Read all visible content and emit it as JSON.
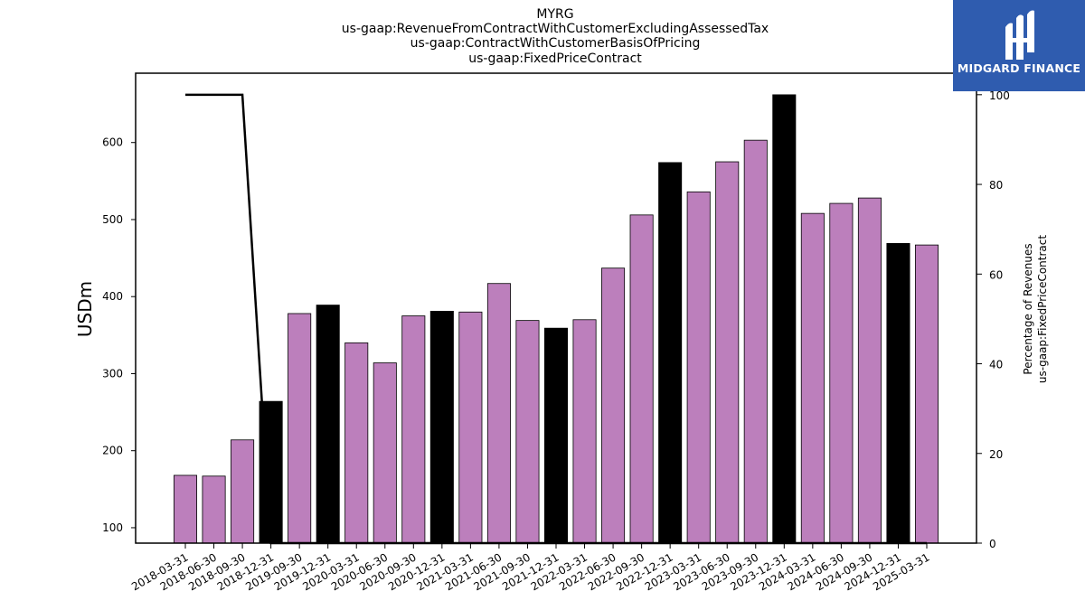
{
  "chart_data": {
    "type": "bar",
    "title_lines": [
      "MYRG",
      "us-gaap:RevenueFromContractWithCustomerExcludingAssessedTax",
      "us-gaap:ContractWithCustomerBasisOfPricing",
      "us-gaap:FixedPriceContract"
    ],
    "ylabel": "USDm",
    "y2label_lines": [
      "Percentage of Revenues",
      "us-gaap:FixedPriceContract"
    ],
    "ylim": [
      80,
      690
    ],
    "y2lim": [
      0,
      104.8
    ],
    "yticks": [
      100,
      200,
      300,
      400,
      500,
      600
    ],
    "y2ticks": [
      0,
      20,
      40,
      60,
      80,
      100
    ],
    "categories": [
      "2018-03-31",
      "2018-06-30",
      "2018-09-30",
      "2018-12-31",
      "2019-09-30",
      "2019-12-31",
      "2020-03-31",
      "2020-06-30",
      "2020-09-30",
      "2020-12-31",
      "2021-03-31",
      "2021-06-30",
      "2021-09-30",
      "2021-12-31",
      "2022-03-31",
      "2022-06-30",
      "2022-09-30",
      "2022-12-31",
      "2023-03-31",
      "2023-06-30",
      "2023-09-30",
      "2023-12-31",
      "2024-03-31",
      "2024-06-30",
      "2024-09-30",
      "2024-12-31",
      "2025-03-31"
    ],
    "values": [
      168,
      167,
      214,
      264,
      378,
      389,
      340,
      314,
      375,
      381,
      380,
      417,
      369,
      359,
      370,
      437,
      506,
      574,
      536,
      575,
      603,
      662,
      508,
      521,
      528,
      469,
      467
    ],
    "highlight": [
      false,
      false,
      false,
      true,
      false,
      true,
      false,
      false,
      false,
      true,
      false,
      false,
      false,
      true,
      false,
      false,
      false,
      true,
      false,
      false,
      false,
      true,
      false,
      false,
      false,
      true,
      false
    ],
    "bar_color": "#bc7fbc",
    "highlight_color": "#000000",
    "line_series": {
      "name": "Percentage of Revenues",
      "values": [
        100,
        100,
        100,
        0,
        0,
        0,
        0,
        0,
        0,
        0,
        0,
        0,
        0,
        0,
        0,
        0,
        0,
        0,
        0,
        0,
        0,
        0,
        0,
        0,
        0,
        0,
        0
      ]
    },
    "grid": false
  },
  "logo": {
    "text": "MIDGARD FINANCE",
    "color": "#2f5caf"
  }
}
